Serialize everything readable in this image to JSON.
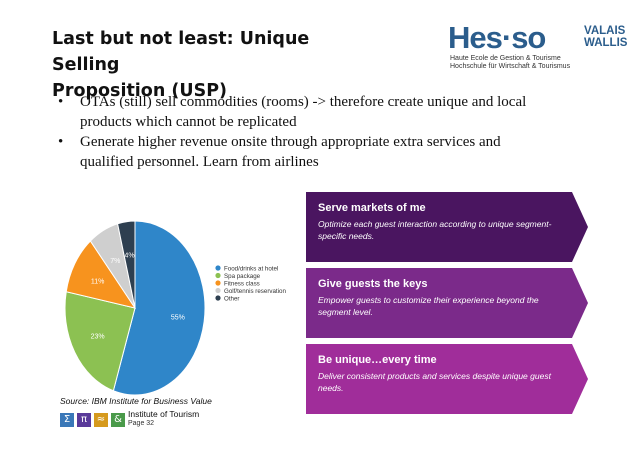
{
  "slide": {
    "title_line1": "Last but not least: Unique Selling",
    "title_line2": "Proposition (USP)",
    "bullets": [
      {
        "marker": "•",
        "text": "OTAs (still) sell commodities (rooms) -> therefore create unique and local products which cannot be replicated"
      },
      {
        "marker": "•",
        "text": "Generate higher revenue onsite through appropriate extra services and qualified personnel. Learn from airlines"
      }
    ],
    "source": "Source: IBM Institute for Business Value",
    "footer_label": "Institute of Tourism",
    "page": "Page 32"
  },
  "logo": {
    "main": "Hes·so",
    "valais_1": "VALAIS",
    "valais_2": "WALLIS",
    "sub_1": "Haute Ecole de Gestion & Tourisme",
    "sub_2": "Hochschule für Wirtschaft & Tourismus",
    "color": "#2b5d8c"
  },
  "footer_icons": [
    {
      "glyph": "Σ",
      "color": "#3a78b8",
      "name": "sigma-icon"
    },
    {
      "glyph": "π",
      "color": "#5a3a9a",
      "name": "pi-icon"
    },
    {
      "glyph": "≈",
      "color": "#d69a1d",
      "name": "approx-icon"
    },
    {
      "glyph": "&",
      "color": "#4a9a4a",
      "name": "ampersand-icon"
    }
  ],
  "banners": [
    {
      "title": "Serve markets of me",
      "desc": "Optimize each guest interaction according to unique segment-specific needs.",
      "color": "#4a1560"
    },
    {
      "title": "Give guests the keys",
      "desc": "Empower guests to customize their experience beyond the segment level.",
      "color": "#7b2a8a"
    },
    {
      "title": "Be unique…every time",
      "desc": "Deliver consistent products and services despite unique guest needs.",
      "color": "#a02d9a"
    }
  ],
  "chart_data": {
    "type": "pie",
    "labels": [
      "Food/drinks at hotel",
      "Spa package",
      "Fitness class",
      "Golf/tennis reservation",
      "Other"
    ],
    "values": [
      55,
      23,
      11,
      7,
      4
    ],
    "value_labels": [
      "55%",
      "23%",
      "11%",
      "7%",
      "4%"
    ],
    "colors": [
      "#2f86c9",
      "#8cc152",
      "#f7931e",
      "#cfcfcf",
      "#2e3f50"
    ],
    "legend_position": "right"
  }
}
